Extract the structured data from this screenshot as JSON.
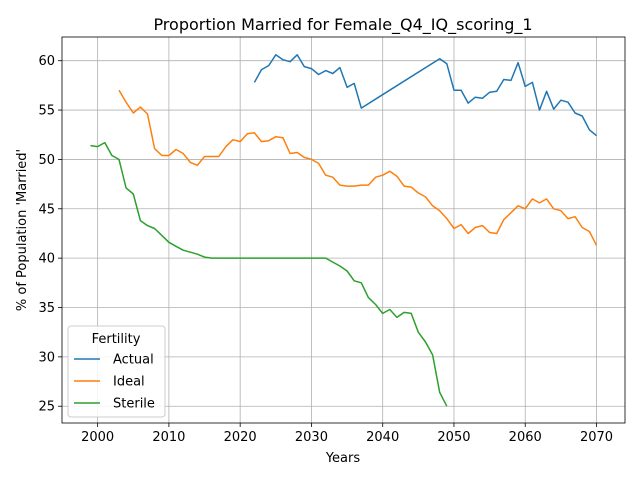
{
  "chart_data": {
    "type": "line",
    "title": "Proportion Married for Female_Q4_IQ_scoring_1",
    "xlabel": "Years",
    "ylabel": "% of Population 'Married'",
    "xlim": [
      1995,
      2074
    ],
    "ylim": [
      23.3,
      62.4
    ],
    "xticks": [
      2000,
      2010,
      2020,
      2030,
      2040,
      2050,
      2060,
      2070
    ],
    "yticks": [
      25,
      30,
      35,
      40,
      45,
      50,
      55,
      60
    ],
    "grid": true,
    "legend": {
      "title": "Fertility",
      "placement": "lower-left"
    },
    "series": [
      {
        "name": "Actual",
        "color": "#1f77b4",
        "points": [
          [
            2022,
            57.8
          ],
          [
            2023,
            59.1
          ],
          [
            2024,
            59.5
          ],
          [
            2025,
            60.6
          ],
          [
            2026,
            60.1
          ],
          [
            2027,
            59.9
          ],
          [
            2028,
            60.6
          ],
          [
            2029,
            59.4
          ],
          [
            2030,
            59.2
          ],
          [
            2031,
            58.6
          ],
          [
            2032,
            59.0
          ],
          [
            2033,
            58.7
          ],
          [
            2034,
            59.3
          ],
          [
            2035,
            57.3
          ],
          [
            2036,
            57.7
          ],
          [
            2037,
            55.2
          ],
          [
            2048,
            60.2
          ],
          [
            2049,
            59.7
          ],
          [
            2050,
            57.0
          ],
          [
            2051,
            57.0
          ],
          [
            2052,
            55.7
          ],
          [
            2053,
            56.3
          ],
          [
            2054,
            56.2
          ],
          [
            2055,
            56.8
          ],
          [
            2056,
            56.9
          ],
          [
            2057,
            58.1
          ],
          [
            2058,
            58.0
          ],
          [
            2059,
            59.8
          ],
          [
            2060,
            57.4
          ],
          [
            2061,
            57.8
          ],
          [
            2062,
            55.0
          ],
          [
            2063,
            56.9
          ],
          [
            2064,
            55.1
          ],
          [
            2065,
            56.0
          ],
          [
            2066,
            55.8
          ],
          [
            2067,
            54.7
          ],
          [
            2068,
            54.4
          ],
          [
            2069,
            53.0
          ],
          [
            2070,
            52.4
          ]
        ]
      },
      {
        "name": "Ideal",
        "color": "#ff7f0e",
        "points": [
          [
            2003,
            57.0
          ],
          [
            2004,
            55.8
          ],
          [
            2005,
            54.7
          ],
          [
            2006,
            55.3
          ],
          [
            2007,
            54.6
          ],
          [
            2008,
            51.1
          ],
          [
            2009,
            50.4
          ],
          [
            2010,
            50.4
          ],
          [
            2011,
            51.0
          ],
          [
            2012,
            50.6
          ],
          [
            2013,
            49.7
          ],
          [
            2014,
            49.4
          ],
          [
            2015,
            50.3
          ],
          [
            2016,
            50.3
          ],
          [
            2017,
            50.3
          ],
          [
            2018,
            51.3
          ],
          [
            2019,
            52.0
          ],
          [
            2020,
            51.8
          ],
          [
            2021,
            52.6
          ],
          [
            2022,
            52.7
          ],
          [
            2023,
            51.8
          ],
          [
            2024,
            51.9
          ],
          [
            2025,
            52.3
          ],
          [
            2026,
            52.2
          ],
          [
            2027,
            50.6
          ],
          [
            2028,
            50.7
          ],
          [
            2029,
            50.2
          ],
          [
            2030,
            50.0
          ],
          [
            2031,
            49.6
          ],
          [
            2032,
            48.4
          ],
          [
            2033,
            48.2
          ],
          [
            2034,
            47.4
          ],
          [
            2035,
            47.3
          ],
          [
            2036,
            47.3
          ],
          [
            2037,
            47.4
          ],
          [
            2038,
            47.4
          ],
          [
            2039,
            48.2
          ],
          [
            2040,
            48.4
          ],
          [
            2041,
            48.8
          ],
          [
            2042,
            48.3
          ],
          [
            2043,
            47.3
          ],
          [
            2044,
            47.2
          ],
          [
            2045,
            46.6
          ],
          [
            2046,
            46.2
          ],
          [
            2047,
            45.3
          ],
          [
            2048,
            44.8
          ],
          [
            2049,
            44.0
          ],
          [
            2050,
            43.0
          ],
          [
            2051,
            43.4
          ],
          [
            2052,
            42.5
          ],
          [
            2053,
            43.1
          ],
          [
            2054,
            43.3
          ],
          [
            2055,
            42.6
          ],
          [
            2056,
            42.5
          ],
          [
            2057,
            43.9
          ],
          [
            2058,
            44.6
          ],
          [
            2059,
            45.3
          ],
          [
            2060,
            45.0
          ],
          [
            2061,
            46.0
          ],
          [
            2062,
            45.6
          ],
          [
            2063,
            46.0
          ],
          [
            2064,
            45.0
          ],
          [
            2065,
            44.8
          ],
          [
            2066,
            44.0
          ],
          [
            2067,
            44.2
          ],
          [
            2068,
            43.1
          ],
          [
            2069,
            42.7
          ],
          [
            2070,
            41.3
          ]
        ]
      },
      {
        "name": "Sterile",
        "color": "#2ca02c",
        "points": [
          [
            1999,
            51.4
          ],
          [
            2000,
            51.3
          ],
          [
            2001,
            51.7
          ],
          [
            2002,
            50.4
          ],
          [
            2003,
            50.0
          ],
          [
            2004,
            47.1
          ],
          [
            2005,
            46.5
          ],
          [
            2006,
            43.8
          ],
          [
            2007,
            43.3
          ],
          [
            2008,
            43.0
          ],
          [
            2009,
            42.3
          ],
          [
            2010,
            41.6
          ],
          [
            2011,
            41.2
          ],
          [
            2012,
            40.8
          ],
          [
            2013,
            40.6
          ],
          [
            2014,
            40.4
          ],
          [
            2015,
            40.1
          ],
          [
            2016,
            40.0
          ],
          [
            2020,
            40.0
          ],
          [
            2025,
            40.0
          ],
          [
            2030,
            40.0
          ],
          [
            2032,
            40.0
          ],
          [
            2033,
            39.6
          ],
          [
            2034,
            39.2
          ],
          [
            2035,
            38.7
          ],
          [
            2036,
            37.7
          ],
          [
            2037,
            37.5
          ],
          [
            2038,
            36.0
          ],
          [
            2039,
            35.3
          ],
          [
            2040,
            34.4
          ],
          [
            2041,
            34.8
          ],
          [
            2042,
            34.0
          ],
          [
            2043,
            34.5
          ],
          [
            2044,
            34.4
          ],
          [
            2045,
            32.5
          ],
          [
            2046,
            31.5
          ],
          [
            2047,
            30.2
          ],
          [
            2048,
            26.4
          ],
          [
            2049,
            25.0
          ]
        ]
      }
    ]
  }
}
